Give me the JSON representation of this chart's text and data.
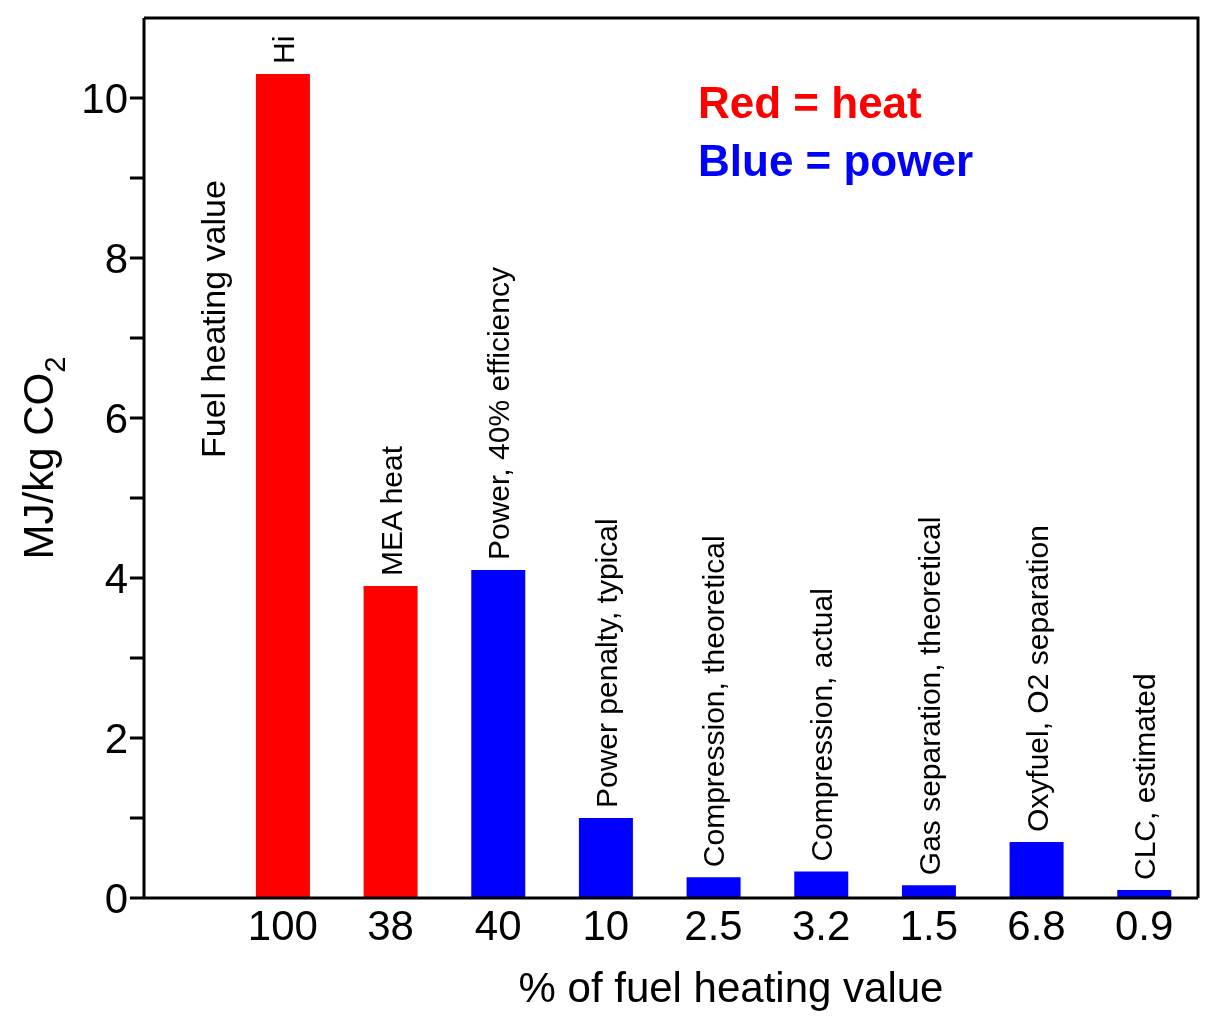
{
  "chart_data": {
    "type": "bar",
    "xlabel": "% of fuel heating value",
    "ylabel": "MJ/kg CO$_{2}$",
    "categories": [
      "100",
      "38",
      "40",
      "10",
      "2.5",
      "3.2",
      "1.5",
      "6.8",
      "0.9"
    ],
    "series": [
      {
        "name": "Red = heat",
        "color": "#ff0000",
        "values": [
          10.3,
          3.9,
          null,
          null,
          null,
          null,
          null,
          null,
          null
        ]
      },
      {
        "name": "Blue = power",
        "color": "#0000ff",
        "values": [
          null,
          null,
          4.1,
          1.0,
          0.26,
          0.33,
          0.16,
          0.7,
          0.1
        ]
      }
    ],
    "stacked": true,
    "ylim": [
      0,
      11
    ],
    "yticks": [
      0,
      {
        "value": 1,
        "label": null
      },
      2,
      {
        "value": 3,
        "label": null
      },
      4,
      {
        "value": 5,
        "label": null
      },
      6,
      {
        "value": 7,
        "label": null
      },
      8,
      {
        "value": 9,
        "label": null
      },
      10
    ],
    "grid": false,
    "legend": "top right",
    "annotations": [
      "Fuel heating value",
      {
        "text": "Hi",
        "x": "100",
        "y": 10.3
      },
      {
        "text": "MEA heat",
        "x": "38",
        "y": 3.9
      },
      {
        "text": "Power, 40% efficiency",
        "x": "40",
        "y": 4.1
      },
      {
        "text": "Power penalty, typical",
        "x": "10",
        "y": 1.0
      },
      {
        "text": "Compression, theoretical",
        "x": "2.5",
        "y": 0.26
      },
      {
        "text": "Compression, actual",
        "x": "3.2",
        "y": 0.33
      },
      {
        "text": "Gas separation, theoretical",
        "x": "1.5",
        "y": 0.16
      },
      {
        "text": "Oxyfuel, O2 separation",
        "x": "6.8",
        "y": 0.7
      },
      {
        "text": "CLC, estimated",
        "x": "0.9",
        "y": 0.1
      }
    ]
  }
}
